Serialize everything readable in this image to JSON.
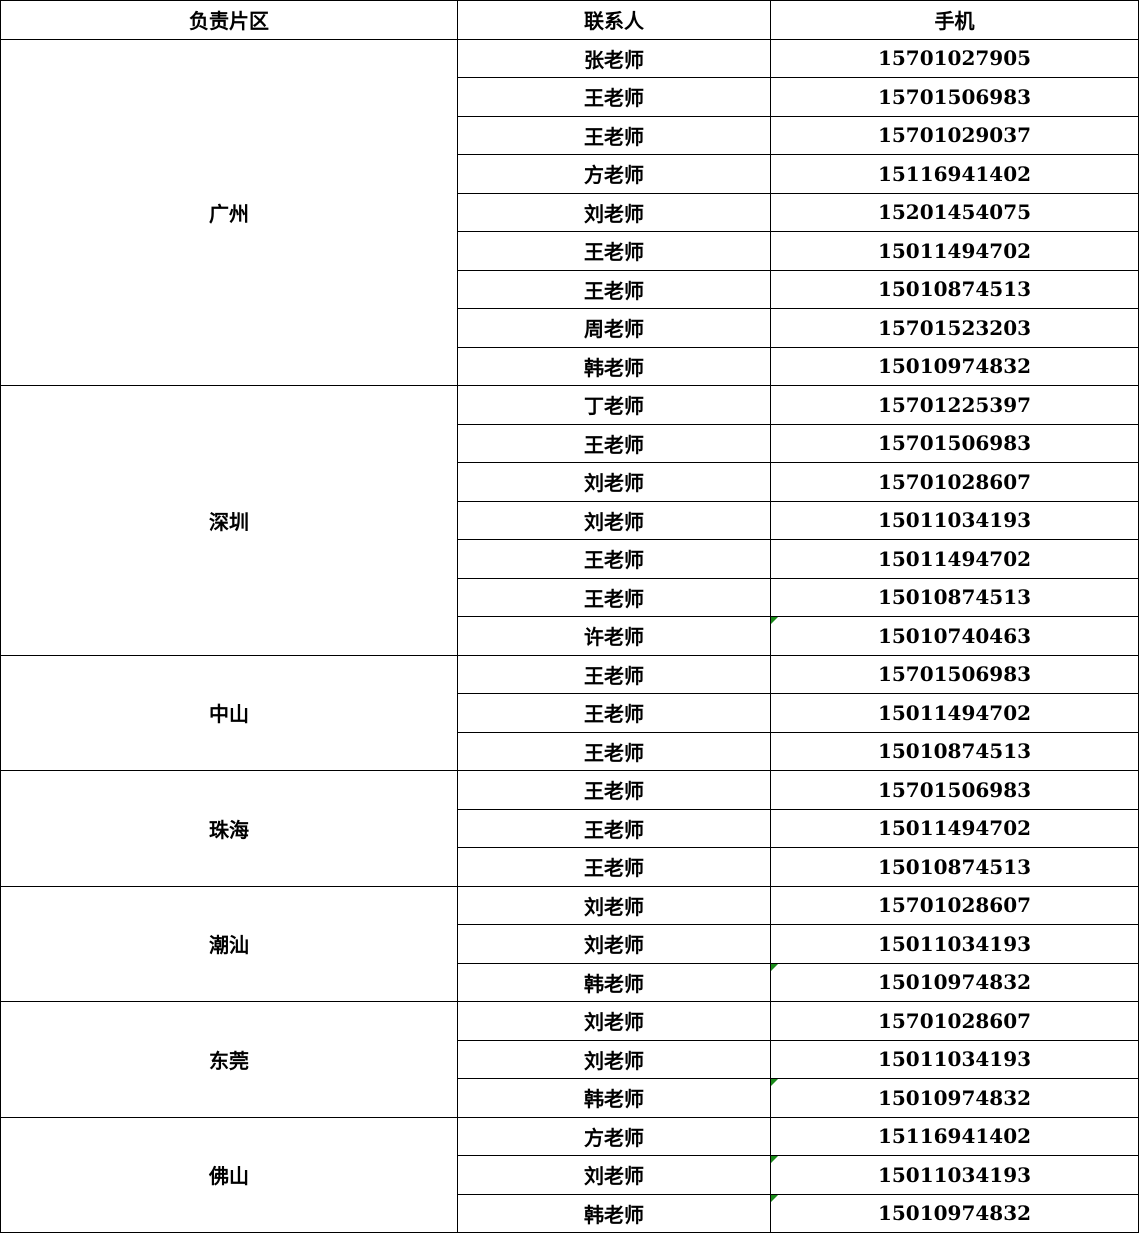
{
  "headers": [
    "负责片区",
    "联系人",
    "手机"
  ],
  "flag_color": "#1a8a1a",
  "groups": [
    {
      "region": "广州",
      "contacts": [
        {
          "name": "张老师",
          "phone": "15701027905"
        },
        {
          "name": "王老师",
          "phone": "15701506983"
        },
        {
          "name": "王老师",
          "phone": "15701029037"
        },
        {
          "name": "方老师",
          "phone": "15116941402"
        },
        {
          "name": "刘老师",
          "phone": "15201454075"
        },
        {
          "name": "王老师",
          "phone": "15011494702"
        },
        {
          "name": "王老师",
          "phone": "15010874513"
        },
        {
          "name": "周老师",
          "phone": "15701523203"
        },
        {
          "name": "韩老师",
          "phone": "15010974832"
        }
      ]
    },
    {
      "region": "深圳",
      "contacts": [
        {
          "name": "丁老师",
          "phone": "15701225397"
        },
        {
          "name": "王老师",
          "phone": "15701506983"
        },
        {
          "name": "刘老师",
          "phone": "15701028607"
        },
        {
          "name": "刘老师",
          "phone": "15011034193"
        },
        {
          "name": "王老师",
          "phone": "15011494702"
        },
        {
          "name": "王老师",
          "phone": "15010874513"
        },
        {
          "name": "许老师",
          "phone": "15010740463",
          "flag": true
        }
      ]
    },
    {
      "region": "中山",
      "contacts": [
        {
          "name": "王老师",
          "phone": "15701506983"
        },
        {
          "name": "王老师",
          "phone": "15011494702"
        },
        {
          "name": "王老师",
          "phone": "15010874513"
        }
      ]
    },
    {
      "region": "珠海",
      "contacts": [
        {
          "name": "王老师",
          "phone": "15701506983"
        },
        {
          "name": "王老师",
          "phone": "15011494702"
        },
        {
          "name": "王老师",
          "phone": "15010874513"
        }
      ]
    },
    {
      "region": "潮汕",
      "contacts": [
        {
          "name": "刘老师",
          "phone": "15701028607"
        },
        {
          "name": "刘老师",
          "phone": "15011034193"
        },
        {
          "name": "韩老师",
          "phone": "15010974832",
          "flag": true
        }
      ]
    },
    {
      "region": "东莞",
      "contacts": [
        {
          "name": "刘老师",
          "phone": "15701028607"
        },
        {
          "name": "刘老师",
          "phone": "15011034193"
        },
        {
          "name": "韩老师",
          "phone": "15010974832",
          "flag": true
        }
      ]
    },
    {
      "region": "佛山",
      "contacts": [
        {
          "name": "方老师",
          "phone": "15116941402"
        },
        {
          "name": "刘老师",
          "phone": "15011034193",
          "flag": true
        },
        {
          "name": "韩老师",
          "phone": "15010974832",
          "flag": true
        }
      ]
    }
  ]
}
